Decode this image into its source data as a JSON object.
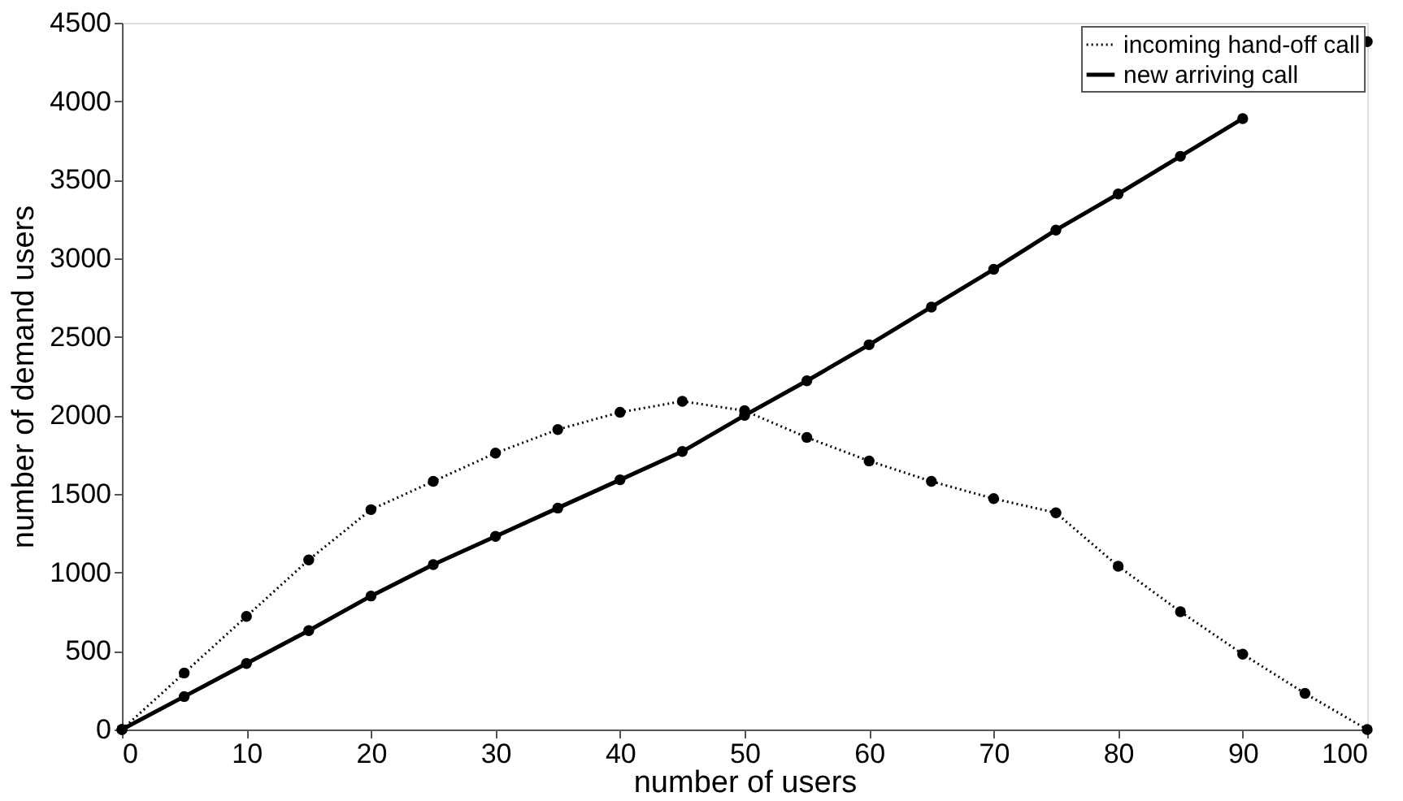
{
  "chart_data": {
    "type": "line",
    "xlabel": "number of users",
    "ylabel": "number of demand users",
    "x": [
      0,
      5,
      10,
      15,
      20,
      25,
      30,
      35,
      40,
      45,
      50,
      55,
      60,
      65,
      70,
      75,
      80,
      85,
      90,
      95,
      100
    ],
    "series": [
      {
        "name": "incoming hand-off call",
        "color": "#000000",
        "line_style": "dotted",
        "values": [
          0,
          360,
          720,
          1080,
          1400,
          1580,
          1760,
          1910,
          2020,
          2090,
          2030,
          1860,
          1710,
          1580,
          1470,
          1380,
          1040,
          750,
          480,
          230,
          0
        ]
      },
      {
        "name": "new arriving call",
        "color": "#000000",
        "line_style": "solid",
        "values": [
          0,
          210,
          420,
          630,
          850,
          1050,
          1230,
          1410,
          1590,
          1770,
          2000,
          2220,
          2450,
          2690,
          2930,
          3180,
          3410,
          3650,
          3890,
          null,
          4380
        ]
      }
    ],
    "xlim": [
      0,
      100
    ],
    "xticks": [
      0,
      10,
      20,
      30,
      40,
      50,
      60,
      70,
      80,
      90,
      100
    ],
    "ylim": [
      0,
      4500
    ],
    "yticks": [
      0,
      500,
      1000,
      1500,
      2000,
      2500,
      3000,
      3500,
      4000,
      4500
    ],
    "grid": false,
    "legend": "top right",
    "marker": "circle"
  }
}
